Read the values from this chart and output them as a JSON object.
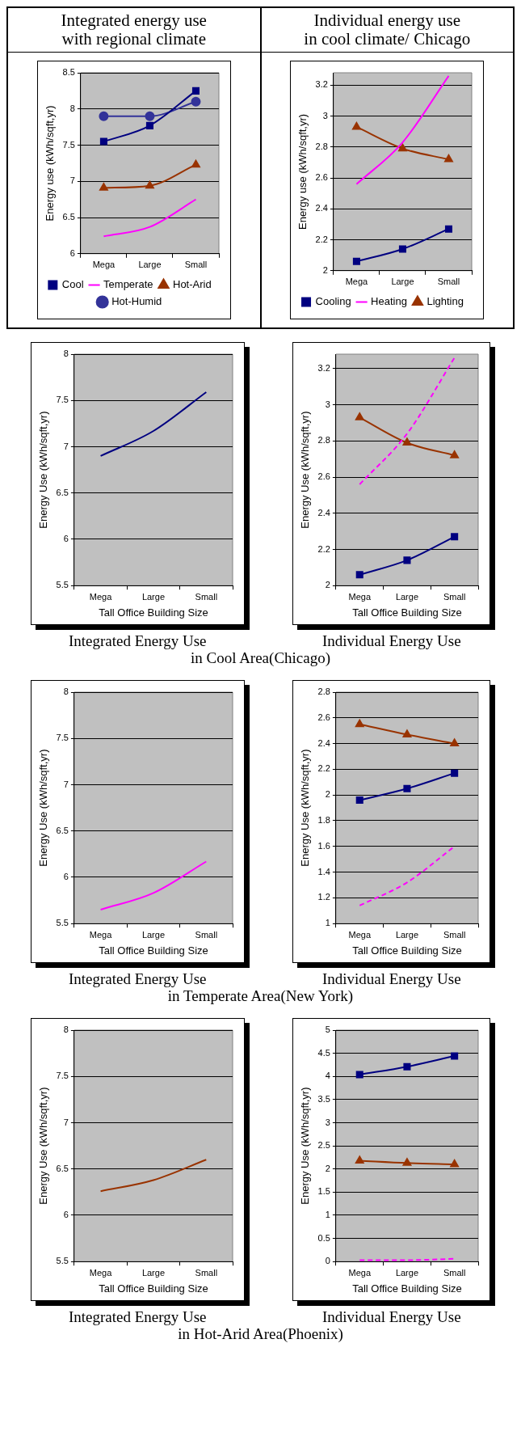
{
  "chart_data": [
    {
      "type": "line",
      "title": "Integrated energy use\nwith regional climate",
      "ylabel": "Energy use (kWh/sqft,yr)",
      "categories": [
        "Mega",
        "Large",
        "Small"
      ],
      "ylim": [
        6,
        8.5
      ],
      "yticks": [
        6,
        6.5,
        7,
        7.5,
        8,
        8.5
      ],
      "grid": "y",
      "legend": "bottom",
      "series": [
        {
          "name": "Cool",
          "color": "#000080",
          "marker": "square",
          "values": [
            7.55,
            7.77,
            8.25
          ]
        },
        {
          "name": "Temperate",
          "color": "#ff00ff",
          "marker": "none",
          "values": [
            6.24,
            6.37,
            6.75
          ]
        },
        {
          "name": "Hot-Arid",
          "color": "#993300",
          "marker": "triangle",
          "values": [
            6.91,
            6.94,
            7.23
          ]
        },
        {
          "name": "Hot-Humid",
          "color": "#333399",
          "marker": "circle",
          "values": [
            7.9,
            7.9,
            8.1
          ]
        }
      ]
    },
    {
      "type": "line",
      "title": "Individual energy use\nin cool climate/ Chicago",
      "ylabel": "Energy use (kWh/sqft,yr)",
      "categories": [
        "Mega",
        "Large",
        "Small"
      ],
      "ylim": [
        2,
        3.28
      ],
      "yticks": [
        2,
        2.2,
        2.4,
        2.6,
        2.8,
        3,
        3.2
      ],
      "grid": "y",
      "legend": "bottom",
      "series": [
        {
          "name": "Cooling",
          "color": "#000080",
          "marker": "square",
          "values": [
            2.06,
            2.14,
            2.27
          ]
        },
        {
          "name": "Heating",
          "color": "#ff00ff",
          "marker": "none",
          "values": [
            2.56,
            2.83,
            3.26
          ]
        },
        {
          "name": "Lighting",
          "color": "#993300",
          "marker": "triangle",
          "values": [
            2.93,
            2.79,
            2.72
          ]
        }
      ]
    },
    {
      "type": "line",
      "title": "Integrated Energy Use",
      "xlabel": "Tall Office Building Size",
      "ylabel": "Energy Use (kWh/sqft,yr)",
      "categories": [
        "Mega",
        "Large",
        "Small"
      ],
      "ylim": [
        5.5,
        8
      ],
      "yticks": [
        5.5,
        6,
        6.5,
        7,
        7.5,
        8
      ],
      "grid": "y",
      "series": [
        {
          "color": "#000080",
          "marker": "none",
          "values": [
            6.9,
            7.17,
            7.59
          ]
        }
      ]
    },
    {
      "type": "line",
      "title": "Individual Energy Use",
      "xlabel": "Tall Office Building Size",
      "ylabel": "Energy Use (kWh/sqft,yr)",
      "categories": [
        "Mega",
        "Large",
        "Small"
      ],
      "ylim": [
        2,
        3.28
      ],
      "yticks": [
        2,
        2.2,
        2.4,
        2.6,
        2.8,
        3,
        3.2
      ],
      "grid": "y",
      "annotations": [
        "in Cool Area(Chicago)"
      ],
      "series": [
        {
          "color": "#000080",
          "marker": "square",
          "values": [
            2.06,
            2.14,
            2.27
          ]
        },
        {
          "color": "#ff00ff",
          "marker": "none",
          "line_style": "dashed",
          "values": [
            2.56,
            2.84,
            3.26
          ]
        },
        {
          "color": "#993300",
          "marker": "triangle",
          "values": [
            2.93,
            2.79,
            2.72
          ]
        }
      ]
    },
    {
      "type": "line",
      "title": "Integrated Energy Use",
      "xlabel": "Tall Office Building Size",
      "ylabel": "Energy Use (kWh/sqft,yr)",
      "categories": [
        "Mega",
        "Large",
        "Small"
      ],
      "ylim": [
        5.5,
        8
      ],
      "yticks": [
        5.5,
        6,
        6.5,
        7,
        7.5,
        8
      ],
      "grid": "y",
      "series": [
        {
          "color": "#ff00ff",
          "marker": "none",
          "values": [
            5.65,
            5.83,
            6.17
          ]
        }
      ]
    },
    {
      "type": "line",
      "title": "Individual Energy Use",
      "xlabel": "Tall Office Building Size",
      "ylabel": "Energy Use (kWh/sqft,yr)",
      "categories": [
        "Mega",
        "Large",
        "Small"
      ],
      "ylim": [
        1,
        2.8
      ],
      "yticks": [
        1,
        1.2,
        1.4,
        1.6,
        1.8,
        2,
        2.2,
        2.4,
        2.6,
        2.8
      ],
      "grid": "y",
      "annotations": [
        "in Temperate Area(New York)"
      ],
      "series": [
        {
          "color": "#993300",
          "marker": "triangle",
          "values": [
            2.55,
            2.47,
            2.4
          ]
        },
        {
          "color": "#000080",
          "marker": "square",
          "values": [
            1.96,
            2.05,
            2.17
          ]
        },
        {
          "color": "#ff00ff",
          "marker": "none",
          "line_style": "dashed",
          "values": [
            1.14,
            1.32,
            1.6
          ]
        }
      ]
    },
    {
      "type": "line",
      "title": "Integrated Energy Use",
      "xlabel": "Tall Office Building Size",
      "ylabel": "Energy Use (kWh/sqft,yr)",
      "categories": [
        "Mega",
        "Large",
        "Small"
      ],
      "ylim": [
        5.5,
        8
      ],
      "yticks": [
        5.5,
        6,
        6.5,
        7,
        7.5,
        8
      ],
      "grid": "y",
      "series": [
        {
          "color": "#993300",
          "marker": "none",
          "values": [
            6.26,
            6.38,
            6.6
          ]
        }
      ]
    },
    {
      "type": "line",
      "title": "Individual Energy Use",
      "xlabel": "Tall Office Building Size",
      "ylabel": "Energy Use (kWh/sqft,yr)",
      "categories": [
        "Mega",
        "Large",
        "Small"
      ],
      "ylim": [
        0,
        5
      ],
      "yticks": [
        0,
        0.5,
        1,
        1.5,
        2,
        2.5,
        3,
        3.5,
        4,
        4.5,
        5
      ],
      "grid": "y",
      "annotations": [
        "in Hot-Arid Area(Phoenix)"
      ],
      "series": [
        {
          "color": "#000080",
          "marker": "square",
          "values": [
            4.04,
            4.21,
            4.44
          ]
        },
        {
          "color": "#993300",
          "marker": "triangle",
          "values": [
            2.18,
            2.13,
            2.1
          ]
        },
        {
          "color": "#ff00ff",
          "marker": "none",
          "line_style": "dashed",
          "values": [
            0.03,
            0.03,
            0.06
          ]
        }
      ]
    }
  ]
}
